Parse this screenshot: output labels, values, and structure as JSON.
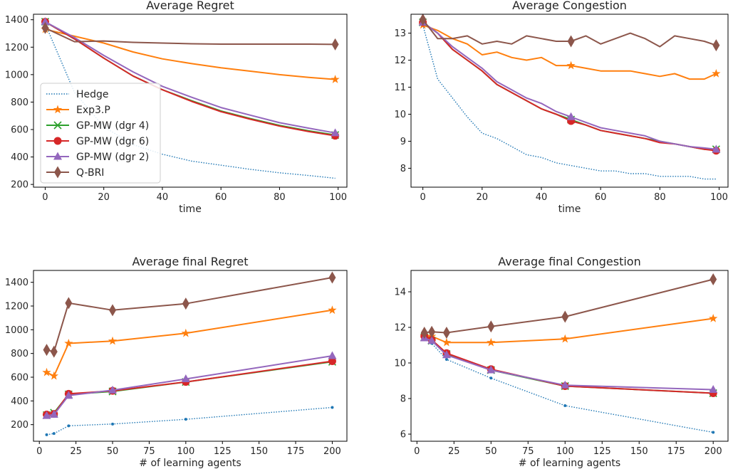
{
  "figure": {
    "legend_items": [
      {
        "label": "Hedge",
        "color": "#1f77b4",
        "style": "dotted",
        "marker": "none"
      },
      {
        "label": "Exp3.P",
        "color": "#ff7f0e",
        "style": "solid",
        "marker": "star"
      },
      {
        "label": "GP-MW (dgr 4)",
        "color": "#2ca02c",
        "style": "solid",
        "marker": "x"
      },
      {
        "label": "GP-MW (dgr 6)",
        "color": "#d62728",
        "style": "solid",
        "marker": "circle"
      },
      {
        "label": "GP-MW (dgr 2)",
        "color": "#9467bd",
        "style": "solid",
        "marker": "triangle"
      },
      {
        "label": "Q-BRI",
        "color": "#8c564b",
        "style": "solid",
        "marker": "diamond"
      }
    ]
  },
  "chart_data": [
    {
      "type": "line",
      "title": "Average Regret",
      "xlabel": "time",
      "ylabel": "",
      "xlim": [
        -4,
        103
      ],
      "ylim": [
        180,
        1440
      ],
      "xticks": [
        0,
        20,
        40,
        60,
        80,
        100
      ],
      "yticks": [
        200,
        400,
        600,
        800,
        1000,
        1200,
        1400
      ],
      "legend": "lower-left",
      "grid": false,
      "x": [
        0,
        10,
        20,
        30,
        40,
        50,
        60,
        70,
        80,
        90,
        99
      ],
      "series": [
        {
          "name": "Hedge",
          "values": [
            1370,
            870,
            620,
            490,
            420,
            370,
            340,
            310,
            285,
            265,
            245
          ]
        },
        {
          "name": "Exp3.P",
          "values": [
            1330,
            1280,
            1230,
            1165,
            1115,
            1080,
            1050,
            1025,
            1000,
            980,
            965
          ]
        },
        {
          "name": "GP-MW (dgr 4)",
          "values": [
            1385,
            1260,
            1120,
            990,
            890,
            810,
            735,
            680,
            630,
            590,
            560
          ]
        },
        {
          "name": "GP-MW (dgr 6)",
          "values": [
            1385,
            1260,
            1120,
            990,
            890,
            805,
            730,
            675,
            625,
            585,
            555
          ]
        },
        {
          "name": "GP-MW (dgr 2)",
          "values": [
            1385,
            1270,
            1140,
            1020,
            915,
            835,
            760,
            705,
            650,
            610,
            575
          ]
        },
        {
          "name": "Q-BRI",
          "values": [
            1340,
            1240,
            1245,
            1235,
            1230,
            1225,
            1222,
            1222,
            1222,
            1222,
            1220
          ]
        }
      ]
    },
    {
      "type": "line",
      "title": "Average Congestion",
      "xlabel": "time",
      "ylabel": "",
      "xlim": [
        -4,
        103
      ],
      "ylim": [
        7.3,
        13.7
      ],
      "xticks": [
        0,
        20,
        40,
        60,
        80,
        100
      ],
      "yticks": [
        8,
        9,
        10,
        11,
        12,
        13
      ],
      "grid": false,
      "x": [
        0,
        5,
        10,
        15,
        20,
        25,
        30,
        35,
        40,
        45,
        50,
        55,
        60,
        65,
        70,
        75,
        80,
        85,
        90,
        95,
        99
      ],
      "series": [
        {
          "name": "Hedge",
          "values": [
            13.3,
            11.3,
            10.6,
            9.9,
            9.3,
            9.1,
            8.8,
            8.5,
            8.4,
            8.2,
            8.1,
            8.0,
            7.9,
            7.9,
            7.8,
            7.8,
            7.7,
            7.7,
            7.7,
            7.6,
            7.6
          ]
        },
        {
          "name": "Exp3.P",
          "values": [
            13.3,
            13.1,
            12.8,
            12.6,
            12.2,
            12.3,
            12.1,
            12.0,
            12.1,
            11.8,
            11.8,
            11.7,
            11.6,
            11.6,
            11.6,
            11.5,
            11.4,
            11.5,
            11.3,
            11.3,
            11.5
          ]
        },
        {
          "name": "GP-MW (dgr 4)",
          "values": [
            13.4,
            13.0,
            12.4,
            12.0,
            11.6,
            11.1,
            10.8,
            10.5,
            10.2,
            10.0,
            9.8,
            9.6,
            9.4,
            9.3,
            9.2,
            9.1,
            9.0,
            8.9,
            8.8,
            8.7,
            8.7
          ]
        },
        {
          "name": "GP-MW (dgr 6)",
          "values": [
            13.4,
            13.0,
            12.4,
            12.0,
            11.6,
            11.1,
            10.8,
            10.5,
            10.2,
            10.0,
            9.75,
            9.6,
            9.4,
            9.3,
            9.2,
            9.1,
            8.95,
            8.9,
            8.8,
            8.7,
            8.65
          ]
        },
        {
          "name": "GP-MW (dgr 2)",
          "values": [
            13.4,
            13.0,
            12.5,
            12.1,
            11.7,
            11.2,
            10.9,
            10.6,
            10.4,
            10.1,
            9.9,
            9.7,
            9.5,
            9.4,
            9.3,
            9.2,
            9.0,
            8.9,
            8.8,
            8.75,
            8.7
          ]
        },
        {
          "name": "Q-BRI",
          "values": [
            13.5,
            12.8,
            12.8,
            12.9,
            12.6,
            12.7,
            12.6,
            12.9,
            12.8,
            12.7,
            12.7,
            12.9,
            12.6,
            12.8,
            13.0,
            12.8,
            12.5,
            12.9,
            12.8,
            12.7,
            12.55
          ]
        }
      ]
    },
    {
      "type": "line",
      "title": "Average final Regret",
      "xlabel": "# of learning agents",
      "ylabel": "",
      "xlim": [
        -4,
        210
      ],
      "ylim": [
        60,
        1500
      ],
      "xticks": [
        0,
        25,
        50,
        75,
        100,
        125,
        150,
        175,
        200
      ],
      "yticks": [
        200,
        400,
        600,
        800,
        1000,
        1200,
        1400
      ],
      "grid": false,
      "x": [
        5,
        10,
        20,
        50,
        100,
        200
      ],
      "series": [
        {
          "name": "Hedge",
          "values": [
            115,
            125,
            190,
            205,
            245,
            345
          ]
        },
        {
          "name": "Exp3.P",
          "values": [
            640,
            610,
            885,
            905,
            970,
            1165
          ]
        },
        {
          "name": "GP-MW (dgr 4)",
          "values": [
            280,
            300,
            455,
            480,
            560,
            730
          ]
        },
        {
          "name": "GP-MW (dgr 6)",
          "values": [
            285,
            290,
            460,
            485,
            560,
            735
          ]
        },
        {
          "name": "GP-MW (dgr 2)",
          "values": [
            275,
            285,
            445,
            490,
            585,
            780
          ]
        },
        {
          "name": "Q-BRI",
          "values": [
            830,
            815,
            1225,
            1165,
            1220,
            1440
          ]
        }
      ]
    },
    {
      "type": "line",
      "title": "Average final Congestion",
      "xlabel": "# of learning agents",
      "ylabel": "",
      "xlim": [
        -4,
        210
      ],
      "ylim": [
        5.6,
        15.2
      ],
      "xticks": [
        0,
        25,
        50,
        75,
        100,
        125,
        150,
        175,
        200
      ],
      "yticks": [
        6,
        8,
        10,
        12,
        14
      ],
      "grid": false,
      "x": [
        5,
        10,
        20,
        50,
        100,
        200
      ],
      "series": [
        {
          "name": "Hedge",
          "values": [
            11.4,
            11.1,
            10.2,
            9.15,
            7.6,
            6.1
          ]
        },
        {
          "name": "Exp3.P",
          "values": [
            11.5,
            11.5,
            11.15,
            11.15,
            11.35,
            12.5
          ]
        },
        {
          "name": "GP-MW (dgr 4)",
          "values": [
            11.45,
            11.25,
            10.5,
            9.6,
            8.7,
            8.3
          ]
        },
        {
          "name": "GP-MW (dgr 6)",
          "values": [
            11.5,
            11.3,
            10.55,
            9.65,
            8.7,
            8.3
          ]
        },
        {
          "name": "GP-MW (dgr 2)",
          "values": [
            11.4,
            11.25,
            10.45,
            9.6,
            8.75,
            8.5
          ]
        },
        {
          "name": "Q-BRI",
          "values": [
            11.7,
            11.75,
            11.7,
            12.05,
            12.6,
            14.7
          ]
        }
      ]
    }
  ]
}
